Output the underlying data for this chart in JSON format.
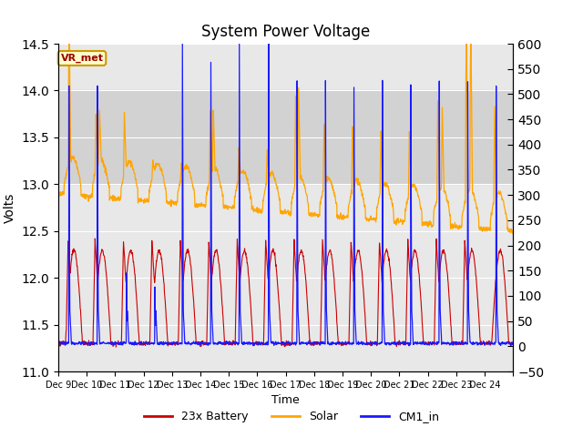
{
  "title": "System Power Voltage",
  "xlabel": "Time",
  "ylabel": "Volts",
  "ylim_left": [
    11.0,
    14.5
  ],
  "ylim_right": [
    -50,
    600
  ],
  "yticks_left": [
    11.0,
    11.5,
    12.0,
    12.5,
    13.0,
    13.5,
    14.0,
    14.5
  ],
  "yticks_right": [
    -50,
    0,
    50,
    100,
    150,
    200,
    250,
    300,
    350,
    400,
    450,
    500,
    550,
    600
  ],
  "xtick_labels": [
    "Dec 9",
    "Dec 10",
    "Dec 11",
    "Dec 12",
    "Dec 13",
    "Dec 14",
    "Dec 15",
    "Dec 16",
    "Dec 17",
    "Dec 18",
    "Dec 19",
    "Dec 20",
    "Dec 21",
    "Dec 22",
    "Dec 23",
    "Dec 24"
  ],
  "shaded_region": [
    13.0,
    14.0
  ],
  "background_color": "#ffffff",
  "plot_bg_color": "#e8e8e8",
  "grid_color": "#ffffff",
  "legend_entries": [
    "23x Battery",
    "Solar",
    "CM1_in"
  ],
  "legend_colors": [
    "#cc0000",
    "#ffa500",
    "#1a1aff"
  ],
  "vr_met_label": "VR_met",
  "vr_met_bg": "#ffffcc",
  "vr_met_border": "#cc9900",
  "vr_met_text_color": "#990000",
  "n_days": 16,
  "pts_per_day": 96
}
